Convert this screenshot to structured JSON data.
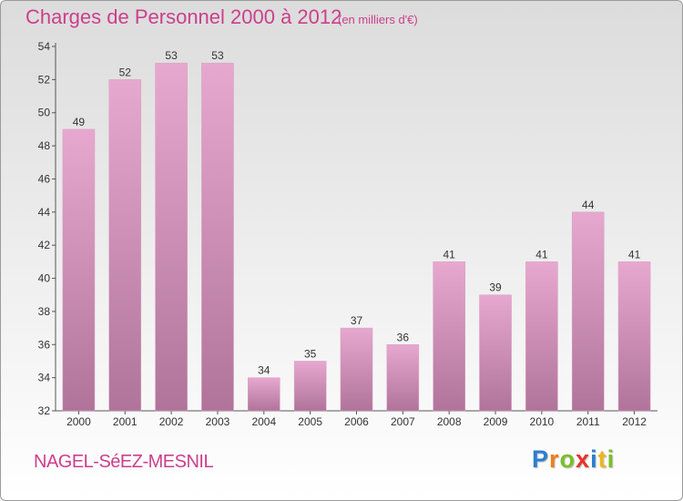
{
  "header": {
    "title": "Charges de Personnel 2000 à 2012",
    "unit": "(en milliers d'€)"
  },
  "footer": {
    "place": "NAGEL-SéEZ-MESNIL",
    "logo_letters": [
      "P",
      "r",
      "o",
      "x",
      "i",
      "t",
      "i"
    ],
    "logo_colors": [
      "#2a7fd0",
      "#f07d1a",
      "#7bbf2a",
      "#e8322a",
      "#2a7fd0",
      "#f0b41a",
      "#7bbf2a"
    ]
  },
  "chart_data": {
    "type": "bar",
    "categories": [
      "2000",
      "2001",
      "2002",
      "2003",
      "2004",
      "2005",
      "2006",
      "2007",
      "2008",
      "2009",
      "2010",
      "2011",
      "2012"
    ],
    "values": [
      49,
      52,
      53,
      53,
      34,
      35,
      37,
      36,
      41,
      39,
      41,
      44,
      41
    ],
    "ylim": [
      32,
      54
    ],
    "yticks": [
      32,
      34,
      36,
      38,
      40,
      42,
      44,
      46,
      48,
      50,
      52,
      54
    ],
    "grid": false,
    "bar_color_top": "#e7a8cf",
    "bar_color_bottom": "#b0749a"
  }
}
